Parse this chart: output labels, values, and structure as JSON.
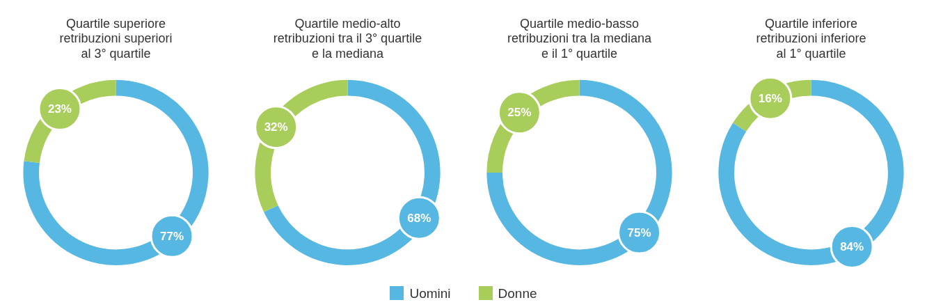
{
  "chart_data": [
    {
      "type": "donut",
      "title": "Quartile superiore\nretribuzioni superiori\nal 3° quartile",
      "categories": [
        "Uomini",
        "Donne"
      ],
      "values": [
        77,
        23
      ],
      "colors": [
        "#56b8e2",
        "#a9cd5b"
      ],
      "value_labels": [
        "77%",
        "23%"
      ],
      "legend": "bottom"
    },
    {
      "type": "donut",
      "title": "Quartile medio-alto\nretribuzioni tra il 3° quartile\ne la mediana",
      "categories": [
        null,
        null
      ],
      "values": [
        68,
        32
      ],
      "colors": [
        "#56b8e2",
        "#a9cd5b"
      ],
      "value_labels": [
        "68%",
        "32%"
      ]
    },
    {
      "type": "donut",
      "title": "Quartile medio-basso\nretribuzioni tra la mediana\ne il 1° quartile",
      "categories": [
        null,
        null
      ],
      "values": [
        75,
        25
      ],
      "colors": [
        "#56b8e2",
        "#a9cd5b"
      ],
      "value_labels": [
        "75%",
        "25%"
      ]
    },
    {
      "type": "donut",
      "title": "Quartile inferiore\nretribuzioni inferiore\nal 1° quartile",
      "categories": [
        null,
        null
      ],
      "values": [
        84,
        16
      ],
      "colors": [
        "#56b8e2",
        "#a9cd5b"
      ],
      "value_labels": [
        "84%",
        "16%"
      ]
    }
  ]
}
